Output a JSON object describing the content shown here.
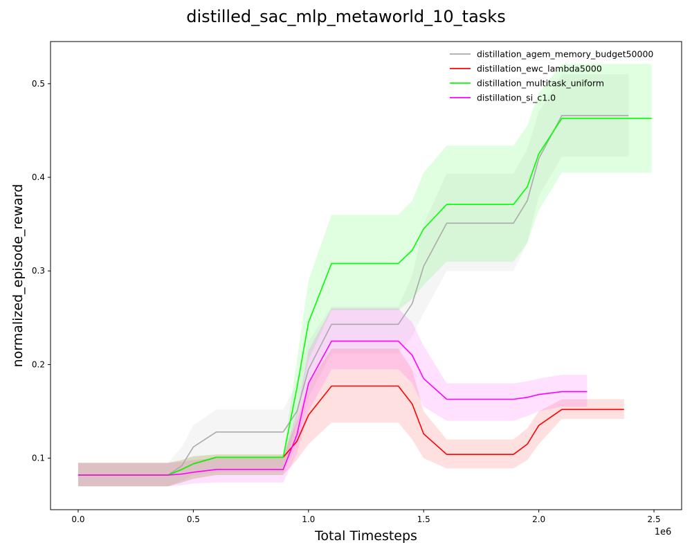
{
  "chart_data": {
    "type": "line",
    "title": "distilled_sac_mlp_metaworld_10_tasks",
    "xlabel": "Total Timesteps",
    "ylabel": "normalized_episode_reward",
    "x_offset_label": "1e6",
    "xlim": [
      -0.12,
      2.62
    ],
    "ylim": [
      0.045,
      0.545
    ],
    "x_ticks": [
      0.0,
      0.5,
      1.0,
      1.5,
      2.0,
      2.5
    ],
    "x_tick_labels": [
      "0.0",
      "0.5",
      "1.0",
      "1.5",
      "2.0",
      "2.5"
    ],
    "y_ticks": [
      0.1,
      0.2,
      0.3,
      0.4,
      0.5
    ],
    "y_tick_labels": [
      "0.1",
      "0.2",
      "0.3",
      "0.4",
      "0.5"
    ],
    "grid": false,
    "legend_position": "top-right",
    "series": [
      {
        "name": "distillation_agem_memory_budget50000",
        "color": "#aaaaaa",
        "x": [
          0.0,
          0.39,
          0.45,
          0.5,
          0.6,
          0.89,
          0.95,
          1.0,
          1.1,
          1.39,
          1.45,
          1.5,
          1.6,
          1.89,
          1.95,
          2.0,
          2.1,
          2.39
        ],
        "y": [
          0.082,
          0.082,
          0.092,
          0.112,
          0.128,
          0.128,
          0.15,
          0.195,
          0.243,
          0.243,
          0.265,
          0.305,
          0.351,
          0.351,
          0.375,
          0.42,
          0.466,
          0.466
        ],
        "lower": [
          0.07,
          0.07,
          0.076,
          0.082,
          0.085,
          0.085,
          0.115,
          0.165,
          0.212,
          0.212,
          0.23,
          0.255,
          0.3,
          0.3,
          0.33,
          0.38,
          0.422,
          0.422
        ],
        "upper": [
          0.095,
          0.095,
          0.112,
          0.135,
          0.152,
          0.152,
          0.18,
          0.225,
          0.262,
          0.262,
          0.295,
          0.35,
          0.404,
          0.404,
          0.43,
          0.47,
          0.51,
          0.51
        ]
      },
      {
        "name": "distillation_ewc_lambda5000",
        "color": "#ff0000",
        "x": [
          0.0,
          0.39,
          0.45,
          0.5,
          0.6,
          0.89,
          0.95,
          1.0,
          1.1,
          1.39,
          1.45,
          1.5,
          1.6,
          1.89,
          1.95,
          2.0,
          2.1,
          2.37
        ],
        "y": [
          0.082,
          0.082,
          0.088,
          0.094,
          0.101,
          0.101,
          0.118,
          0.146,
          0.177,
          0.177,
          0.158,
          0.126,
          0.104,
          0.104,
          0.115,
          0.135,
          0.152,
          0.152
        ],
        "lower": [
          0.07,
          0.07,
          0.074,
          0.078,
          0.082,
          0.082,
          0.098,
          0.115,
          0.138,
          0.138,
          0.12,
          0.1,
          0.089,
          0.089,
          0.098,
          0.115,
          0.142,
          0.142
        ],
        "upper": [
          0.095,
          0.095,
          0.098,
          0.102,
          0.104,
          0.104,
          0.14,
          0.18,
          0.217,
          0.217,
          0.195,
          0.15,
          0.12,
          0.12,
          0.132,
          0.15,
          0.163,
          0.163
        ]
      },
      {
        "name": "distillation_multitask_uniform",
        "color": "#00ff00",
        "x": [
          0.0,
          0.39,
          0.45,
          0.5,
          0.6,
          0.89,
          0.95,
          1.0,
          1.1,
          1.39,
          1.45,
          1.5,
          1.6,
          1.89,
          1.95,
          2.0,
          2.1,
          2.49
        ],
        "y": [
          0.082,
          0.082,
          0.088,
          0.094,
          0.101,
          0.101,
          0.175,
          0.245,
          0.308,
          0.308,
          0.322,
          0.345,
          0.371,
          0.371,
          0.39,
          0.425,
          0.463,
          0.463
        ],
        "lower": [
          0.07,
          0.07,
          0.074,
          0.078,
          0.082,
          0.082,
          0.14,
          0.205,
          0.258,
          0.258,
          0.27,
          0.285,
          0.31,
          0.31,
          0.33,
          0.365,
          0.405,
          0.405
        ],
        "upper": [
          0.095,
          0.095,
          0.098,
          0.102,
          0.104,
          0.104,
          0.205,
          0.29,
          0.36,
          0.36,
          0.375,
          0.405,
          0.434,
          0.434,
          0.455,
          0.49,
          0.521,
          0.521
        ]
      },
      {
        "name": "distillation_si_c1.0",
        "color": "#ff00ff",
        "x": [
          0.0,
          0.39,
          0.45,
          0.5,
          0.6,
          0.89,
          0.95,
          1.0,
          1.1,
          1.39,
          1.45,
          1.5,
          1.6,
          1.89,
          1.95,
          2.0,
          2.1,
          2.21
        ],
        "y": [
          0.082,
          0.082,
          0.083,
          0.085,
          0.088,
          0.088,
          0.125,
          0.18,
          0.225,
          0.225,
          0.21,
          0.185,
          0.163,
          0.163,
          0.165,
          0.168,
          0.171,
          0.171
        ],
        "lower": [
          0.07,
          0.07,
          0.071,
          0.073,
          0.074,
          0.074,
          0.105,
          0.15,
          0.195,
          0.195,
          0.18,
          0.155,
          0.14,
          0.14,
          0.145,
          0.15,
          0.155,
          0.155
        ],
        "upper": [
          0.095,
          0.095,
          0.096,
          0.098,
          0.1,
          0.1,
          0.15,
          0.215,
          0.26,
          0.26,
          0.245,
          0.22,
          0.18,
          0.18,
          0.182,
          0.185,
          0.189,
          0.189
        ]
      }
    ]
  }
}
